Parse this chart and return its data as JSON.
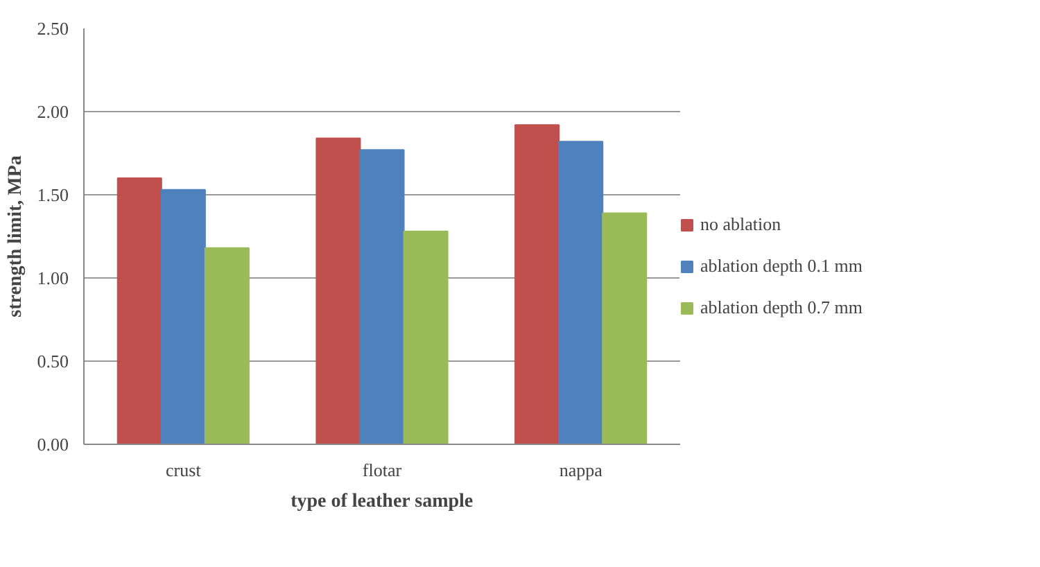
{
  "chart_data": {
    "type": "bar",
    "xlabel": "type of leather sample",
    "ylabel": "strength limit, MPa",
    "categories": [
      "crust",
      "flotar",
      "nappa"
    ],
    "series": [
      {
        "name": "no ablation",
        "color": "#c0504d",
        "values": [
          1.6,
          1.84,
          1.92
        ]
      },
      {
        "name": "ablation depth 0.1 mm",
        "color": "#4f81bd",
        "values": [
          1.53,
          1.77,
          1.82
        ]
      },
      {
        "name": "ablation depth 0.7 mm",
        "color": "#9bbb59",
        "values": [
          1.18,
          1.28,
          1.39
        ]
      }
    ],
    "ylim": [
      0,
      2.5
    ],
    "yticks": [
      {
        "value": 0,
        "label": "0.00"
      },
      {
        "value": 0.5,
        "label": "0.50"
      },
      {
        "value": 1,
        "label": "1.00"
      },
      {
        "value": 1.5,
        "label": "1.50"
      },
      {
        "value": 2,
        "label": "2.00"
      },
      {
        "value": 2.5,
        "label": "2.50"
      }
    ],
    "grid": "y",
    "legend": "right"
  }
}
